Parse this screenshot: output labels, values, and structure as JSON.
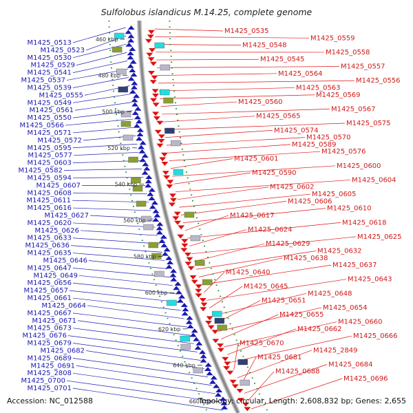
{
  "title": "Sulfolobus islandicus M.14.25, complete genome",
  "footer": {
    "accession": "Accession: NC_012588",
    "summary": "Topology: circular, Length: 2,608,832 bp; Genes: 2,655"
  },
  "kbp_ticks": [
    "460 kbp",
    "480 kbp",
    "500 kbp",
    "520 kbp",
    "540 kbp",
    "560 kbp",
    "580 kbp",
    "600 kbp",
    "620 kbp",
    "640 kbp",
    "660 kbp"
  ],
  "left_labels": [
    "M1425_0513",
    "M1425_0523",
    "M1425_0530",
    "M1425_0529",
    "M1425_0541",
    "M1425_0537",
    "M1425_0539",
    "M1425_0555",
    "M1425_0549",
    "M1425_0561",
    "M1425_0550",
    "M1425_0566",
    "M1425_0571",
    "M1425_0572",
    "M1425_0595",
    "M1425_0577",
    "M1425_0603",
    "M1425_0582",
    "M1425_0594",
    "M1425_0607",
    "M1425_0608",
    "M1425_0611",
    "M1425_0616",
    "M1425_0627",
    "M1425_0620",
    "M1425_0626",
    "M1425_0633",
    "M1425_0636",
    "M1425_0635",
    "M1425_0646",
    "M1425_0647",
    "M1425_0649",
    "M1425_0656",
    "M1425_0657",
    "M1425_0661",
    "M1425_0664",
    "M1425_0667",
    "M1425_0671",
    "M1425_0673",
    "M1425_0676",
    "M1425_0679",
    "M1425_0682",
    "M1425_0689",
    "M1425_0691",
    "M1425_2808",
    "M1425_0700",
    "M1425_0701"
  ],
  "right_labels": [
    "M1425_0535",
    "M1425_0559",
    "M1425_0548",
    "M1425_0558",
    "M1425_0545",
    "M1425_0557",
    "M1425_0564",
    "M1425_0556",
    "M1425_0563",
    "M1425_0569",
    "M1425_0560",
    "M1425_0567",
    "M1425_0565",
    "M1425_0575",
    "M1425_0574",
    "M1425_0570",
    "M1425_0589",
    "M1425_0576",
    "M1425_0601",
    "M1425_0600",
    "M1425_0590",
    "M1425_0604",
    "M1425_0602",
    "M1425_0605",
    "M1425_0606",
    "M1425_0610",
    "M1425_0617",
    "M1425_0618",
    "M1425_0624",
    "M1425_0625",
    "M1425_0629",
    "M1425_0632",
    "M1425_0638",
    "M1425_0637",
    "M1425_0640",
    "M1425_0643",
    "M1425_0645",
    "M1425_0648",
    "M1425_0651",
    "M1425_0654",
    "M1425_0655",
    "M1425_0660",
    "M1425_0662",
    "M1425_0666",
    "M1425_0670",
    "M1425_2849",
    "M1425_0681",
    "M1425_0684",
    "M1425_0688",
    "M1425_0696"
  ],
  "colors": {
    "forward_strand": "#1a1ab0",
    "reverse_strand": "#e01010",
    "backbone": "#8a8a8a",
    "tick_dots": "#1a8a1a",
    "feature_cyan": "#22dddd",
    "feature_olive": "#8aa030",
    "feature_gray": "#b8b8c8",
    "feature_navy": "#304070"
  },
  "icons": {
    "forward_gene": "up-triangle-icon",
    "reverse_gene": "down-triangle-icon"
  }
}
